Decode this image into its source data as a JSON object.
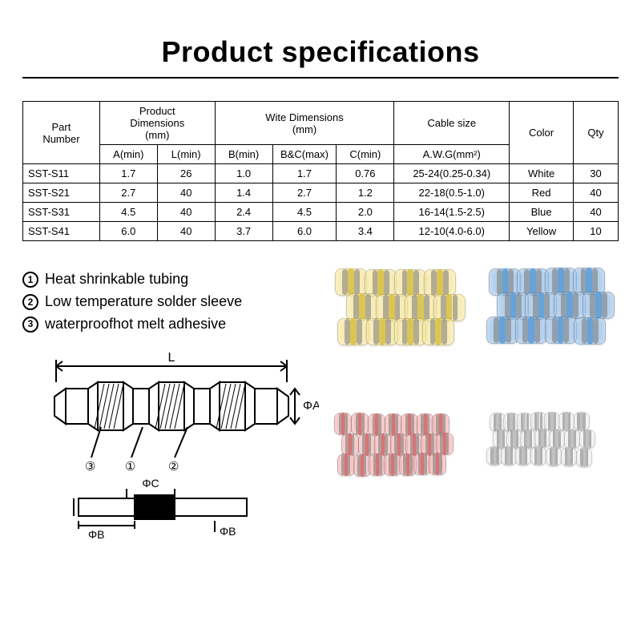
{
  "title": "Product specifications",
  "table": {
    "headers": {
      "part": "Part\nNumber",
      "prod_dim": "Product\nDimensions\n(mm)",
      "wire_dim": "Wite Dimensions\n(mm)",
      "cable": "Cable size",
      "color": "Color",
      "qty": "Qty",
      "a": "A(min)",
      "l": "L(min)",
      "b": "B(min)",
      "bc": "B&C(max)",
      "c": "C(min)",
      "awg": "A.W.G(mm²)"
    },
    "col_widths_pct": [
      12,
      9,
      9,
      9,
      10,
      9,
      18,
      10,
      7
    ],
    "rows": [
      {
        "part": "SST-S11",
        "a": "1.7",
        "l": "26",
        "b": "1.0",
        "bc": "1.7",
        "c": "0.76",
        "awg": "25-24(0.25-0.34)",
        "color": "White",
        "qty": "30"
      },
      {
        "part": "SST-S21",
        "a": "2.7",
        "l": "40",
        "b": "1.4",
        "bc": "2.7",
        "c": "1.2",
        "awg": "22-18(0.5-1.0)",
        "color": "Red",
        "qty": "40"
      },
      {
        "part": "SST-S31",
        "a": "4.5",
        "l": "40",
        "b": "2.4",
        "bc": "4.5",
        "c": "2.0",
        "awg": "16-14(1.5-2.5)",
        "color": "Blue",
        "qty": "40"
      },
      {
        "part": "SST-S41",
        "a": "6.0",
        "l": "40",
        "b": "3.7",
        "bc": "6.0",
        "c": "3.4",
        "awg": "12-10(4.0-6.0)",
        "color": "Yellow",
        "qty": "10"
      }
    ]
  },
  "features": [
    "Heat shrinkable tubing",
    "Low temperature solder sleeve",
    "waterproofhot melt adhesive"
  ],
  "diagram": {
    "labels": {
      "L": "L",
      "phiA": "ΦA",
      "phiB": "ΦB",
      "phiC": "ΦC",
      "n1": "①",
      "n2": "②",
      "n3": "③"
    },
    "stroke": "#000000",
    "stroke_width": 2
  },
  "photo": {
    "piles": [
      {
        "color_body": "rgba(240,220,120,0.55)",
        "ring": "#d8c24a",
        "rows": 3,
        "cols": 4,
        "tube_w": 40,
        "tube_h": 34
      },
      {
        "color_body": "rgba(120,170,220,0.55)",
        "ring": "#5f9fd6",
        "rows": 3,
        "cols": 4,
        "tube_w": 40,
        "tube_h": 34
      },
      {
        "color_body": "rgba(235,150,150,0.55)",
        "ring": "#d66a6a",
        "rows": 3,
        "cols": 7,
        "tube_w": 22,
        "tube_h": 28
      },
      {
        "color_body": "rgba(230,230,230,0.55)",
        "ring": "#bcbcbc",
        "rows": 3,
        "cols": 7,
        "tube_w": 20,
        "tube_h": 24
      }
    ]
  },
  "style": {
    "background": "#ffffff",
    "text_color": "#000000",
    "title_fontsize": 36,
    "table_fontsize": 13,
    "feature_fontsize": 18
  }
}
